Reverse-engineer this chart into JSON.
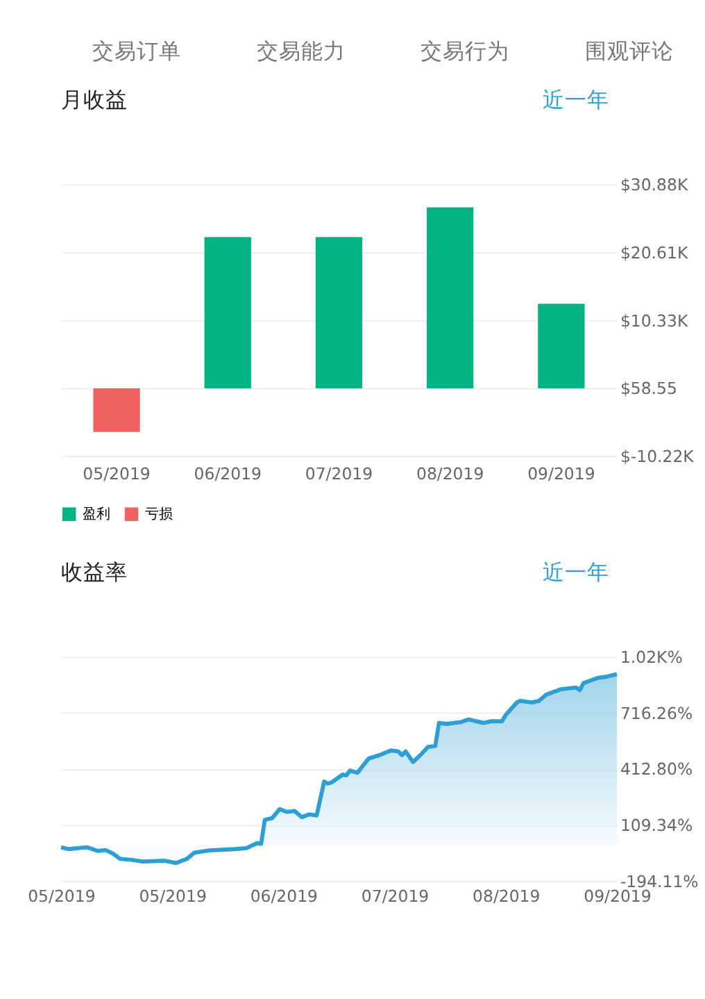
{
  "chart_data": [
    {
      "type": "bar",
      "title": "月收益",
      "annotations": [
        "交易订单",
        "交易能力",
        "交易行为",
        "围观评论",
        "近一年"
      ],
      "categories": [
        "05/2019",
        "06/2019",
        "07/2019",
        "08/2019",
        "09/2019"
      ],
      "series": [
        {
          "name": "盈利",
          "color": "#00b383",
          "values": [
            null,
            22900,
            22900,
            27400,
            12800
          ]
        },
        {
          "name": "亏损",
          "color": "#f06262",
          "values": [
            -6600,
            null,
            null,
            null,
            null
          ]
        }
      ],
      "ylim": [
        -10220,
        30880
      ],
      "yticks": [
        {
          "value": -10220,
          "label": "$-10.22K"
        },
        {
          "value": 58.55,
          "label": "$58.55"
        },
        {
          "value": 10330,
          "label": "$10.33K"
        },
        {
          "value": 20610,
          "label": "$20.61K"
        },
        {
          "value": 30880,
          "label": "$30.88K"
        }
      ],
      "grid": "y",
      "legend": "bottom"
    },
    {
      "type": "area",
      "title": "收益率",
      "annotations": [
        "近一年"
      ],
      "series": [
        {
          "color": "#2e9fd3",
          "x": [
            "2019-05-01",
            "2019-05-03",
            "2019-05-08",
            "2019-05-11",
            "2019-05-13",
            "2019-05-15",
            "2019-05-17",
            "2019-05-20",
            "2019-05-23",
            "2019-05-29",
            "2019-06-01",
            "2019-06-04",
            "2019-06-06",
            "2019-06-10",
            "2019-06-17",
            "2019-06-20",
            "2019-06-23",
            "2019-06-24",
            "2019-06-25",
            "2019-06-27",
            "2019-06-29",
            "2019-07-01",
            "2019-07-03",
            "2019-07-05",
            "2019-07-07",
            "2019-07-09",
            "2019-07-11",
            "2019-07-12",
            "2019-07-13",
            "2019-07-16",
            "2019-07-17",
            "2019-07-18",
            "2019-07-20",
            "2019-07-23",
            "2019-07-26",
            "2019-07-29",
            "2019-07-31",
            "2019-08-01",
            "2019-08-02",
            "2019-08-04",
            "2019-08-06",
            "2019-08-08",
            "2019-08-10",
            "2019-08-11",
            "2019-08-13",
            "2019-08-17",
            "2019-08-19",
            "2019-08-23",
            "2019-08-25",
            "2019-08-28",
            "2019-08-29",
            "2019-09-01",
            "2019-09-02",
            "2019-09-05",
            "2019-09-07",
            "2019-09-09",
            "2019-09-13",
            "2019-09-17",
            "2019-09-18",
            "2019-09-19",
            "2019-09-23",
            "2019-09-25",
            "2019-09-28"
          ],
          "values": [
            -13,
            -23,
            -13,
            -33,
            -28,
            -47,
            -76,
            -81,
            -90,
            -86,
            -98,
            -76,
            -42,
            -30,
            -23,
            -18,
            10,
            6,
            136,
            145,
            194,
            179,
            184,
            150,
            165,
            160,
            343,
            333,
            338,
            381,
            377,
            403,
            391,
            468,
            487,
            512,
            507,
            487,
            507,
            449,
            487,
            531,
            536,
            661,
            656,
            666,
            680,
            661,
            670,
            670,
            704,
            772,
            781,
            772,
            781,
            815,
            844,
            853,
            839,
            877,
            906,
            911,
            926
          ]
        }
      ],
      "xlim": [
        "2019-05-01",
        "2019-09-28"
      ],
      "xticks": [
        {
          "value": "2019-05-01",
          "label": "05/2019"
        },
        {
          "value": "2019-05-31",
          "label": "05/2019"
        },
        {
          "value": "2019-06-30",
          "label": "06/2019"
        },
        {
          "value": "2019-07-30",
          "label": "07/2019"
        },
        {
          "value": "2019-08-29",
          "label": "08/2019"
        },
        {
          "value": "2019-09-28",
          "label": "09/2019"
        }
      ],
      "ylim": [
        -194.11,
        1020
      ],
      "yticks": [
        {
          "value": -194.11,
          "label": "-194.11%"
        },
        {
          "value": 109.34,
          "label": "109.34%"
        },
        {
          "value": 412.8,
          "label": "412.80%"
        },
        {
          "value": 716.26,
          "label": "716.26%"
        },
        {
          "value": 1020,
          "label": "1.02K%"
        }
      ],
      "grid": "y"
    }
  ]
}
